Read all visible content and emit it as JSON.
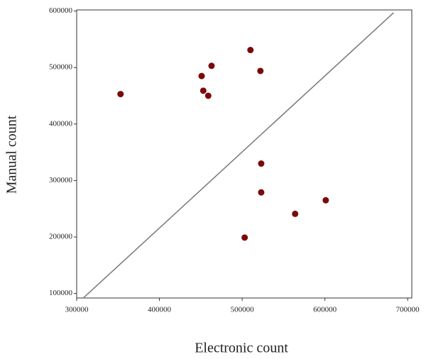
{
  "chart_data": {
    "type": "scatter",
    "x_label": "Electronic count",
    "y_label": "Manual count",
    "x": [
      353000,
      451000,
      463000,
      510000,
      522000,
      453000,
      459000,
      523000,
      523000,
      564000,
      601000,
      503000
    ],
    "values": [
      453000,
      485000,
      503000,
      531000,
      494000,
      459000,
      450000,
      330000,
      279000,
      241000,
      265000,
      199000
    ],
    "color": "#7b0a0a",
    "reference_line": {
      "x": [
        308000,
        683000
      ],
      "y": [
        92000,
        597000
      ],
      "color": "#777777"
    },
    "xlim": [
      300000,
      705000
    ],
    "ylim": [
      92000,
      602000
    ],
    "xticks": [
      300000,
      400000,
      500000,
      600000,
      700000
    ],
    "yticks": [
      100000,
      200000,
      300000,
      400000,
      500000,
      600000
    ]
  }
}
